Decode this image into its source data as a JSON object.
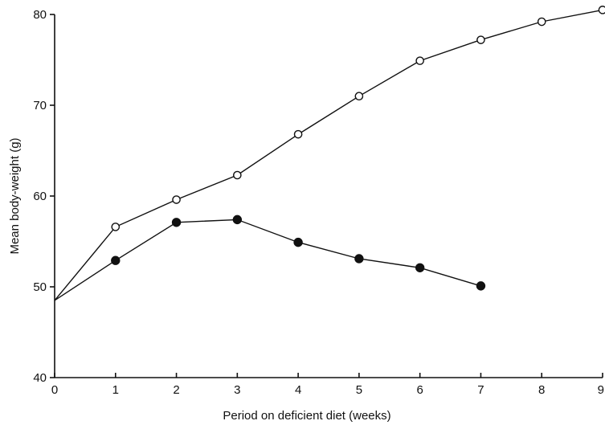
{
  "chart_data": {
    "type": "line",
    "title": "",
    "xlabel": "Period on deficient diet (weeks)",
    "ylabel": "Mean body-weight (g)",
    "xlim": [
      0,
      9
    ],
    "ylim": [
      40,
      80
    ],
    "x_ticks": [
      "0",
      "1",
      "2",
      "3",
      "4",
      "5",
      "6",
      "7",
      "8",
      "9"
    ],
    "y_ticks": [
      "40",
      "50",
      "60",
      "70",
      "80"
    ],
    "grid": false,
    "series": [
      {
        "marker": "open-circle",
        "color": "#111111",
        "x": [
          0,
          1,
          2,
          3,
          4,
          5,
          6,
          7,
          8,
          9
        ],
        "y": [
          48.5,
          56.6,
          59.6,
          62.3,
          66.8,
          71.0,
          74.9,
          77.2,
          79.2,
          80.5
        ]
      },
      {
        "marker": "filled-circle",
        "color": "#111111",
        "x": [
          0,
          1,
          2,
          3,
          4,
          5,
          6,
          7
        ],
        "y": [
          48.5,
          52.9,
          57.1,
          57.4,
          54.9,
          53.1,
          52.1,
          50.1
        ]
      }
    ]
  }
}
